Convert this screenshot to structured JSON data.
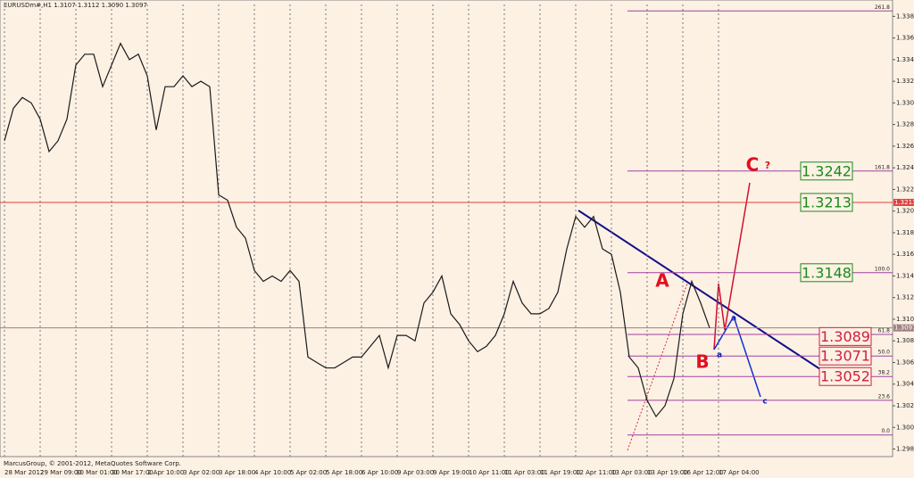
{
  "chart_data": {
    "type": "line",
    "title": "EURUSDm#,H1  1.3107 1.3112 1.3090 1.3097",
    "footer": "MarcusGroup, © 2001-2012, MetaQuotes Software Corp.",
    "color": "#1a1a1a",
    "grid": true,
    "ylim": [
      1.2978,
      1.3396
    ],
    "yticks": [
      1.2985,
      1.3005,
      1.3025,
      1.3045,
      1.3065,
      1.3085,
      1.3105,
      1.3125,
      1.3145,
      1.3165,
      1.3185,
      1.3205,
      1.3225,
      1.3245,
      1.3265,
      1.3285,
      1.3305,
      1.3325,
      1.3345,
      1.3365,
      1.3385
    ],
    "categories": [
      "28 Mar 2012",
      null,
      null,
      null,
      "29 Mar 09:00",
      null,
      null,
      null,
      "30 Mar 01:00",
      null,
      null,
      null,
      "30 Mar 17:00",
      null,
      null,
      null,
      "2 Apr 10:00",
      null,
      null,
      null,
      "3 Apr 02:00",
      null,
      null,
      null,
      "3 Apr 18:00",
      null,
      null,
      null,
      "4 Apr 10:00",
      null,
      null,
      null,
      "5 Apr 02:00",
      null,
      null,
      null,
      "5 Apr 18:00",
      null,
      null,
      null,
      "6 Apr 10:00",
      null,
      null,
      null,
      "9 Apr 03:00",
      null,
      null,
      null,
      "9 Apr 19:00",
      null,
      null,
      null,
      "10 Apr 11:00",
      null,
      null,
      null,
      "11 Apr 03:00",
      null,
      null,
      null,
      "11 Apr 19:00",
      null,
      null,
      null,
      "12 Apr 11:00",
      null,
      null,
      null,
      "13 Apr 03:00",
      null,
      null,
      null,
      "13 Apr 19:00",
      null,
      null,
      null,
      "16 Apr 12:00",
      null,
      null,
      null,
      "17 Apr 04:00",
      null,
      null,
      null,
      null,
      null,
      null,
      null,
      null,
      null,
      null,
      null,
      null,
      null,
      null,
      null,
      null,
      null,
      null,
      null
    ],
    "values": [
      1.327,
      1.33,
      1.331,
      1.3305,
      1.329,
      1.326,
      1.327,
      1.329,
      1.334,
      1.335,
      1.335,
      1.332,
      1.334,
      1.336,
      1.3345,
      1.335,
      1.333,
      1.328,
      1.332,
      1.332,
      1.333,
      1.332,
      1.3325,
      1.332,
      1.322,
      1.3215,
      1.319,
      1.318,
      1.315,
      1.314,
      1.3145,
      1.314,
      1.315,
      1.314,
      1.307,
      1.3065,
      1.306,
      1.306,
      1.3065,
      1.307,
      1.307,
      1.308,
      1.309,
      1.306,
      1.309,
      1.309,
      1.3085,
      1.312,
      1.313,
      1.3145,
      1.311,
      1.31,
      1.3085,
      1.3075,
      1.308,
      1.309,
      1.311,
      1.314,
      1.312,
      1.311,
      1.311,
      1.3115,
      1.313,
      1.317,
      1.32,
      1.319,
      1.32,
      1.317,
      1.3165,
      1.313,
      1.307,
      1.306,
      1.303,
      1.3015,
      1.3025,
      1.305,
      1.311,
      1.314,
      1.312,
      1.3097,
      null,
      null,
      null,
      null,
      null,
      null,
      null,
      null,
      null,
      null,
      null,
      null,
      null,
      null,
      null,
      null,
      null,
      null,
      null,
      null
    ],
    "hlines": [
      {
        "value": 1.3213,
        "color": "#e04040"
      },
      {
        "value": 1.3097,
        "color": "#a08080"
      }
    ],
    "fibo_levels": [
      {
        "label": "261.8",
        "price": 1.339
      },
      {
        "label": "161.8",
        "price": 1.3242
      },
      {
        "label": "100.0",
        "price": 1.3148
      },
      {
        "label": "61.8",
        "price": 1.3091
      },
      {
        "label": "50.0",
        "price": 1.3071
      },
      {
        "label": "38.2",
        "price": 1.3052
      },
      {
        "label": "23.6",
        "price": 1.303
      },
      {
        "label": "0.0",
        "price": 1.2998
      }
    ],
    "price_boxes": [
      {
        "value": 1.3242,
        "color": "#1a8a1a"
      },
      {
        "value": 1.3213,
        "color": "#1a8a1a"
      },
      {
        "value": 1.3148,
        "color": "#1a8a1a"
      },
      {
        "value": 1.3089,
        "color": "#d02040"
      },
      {
        "value": 1.3071,
        "color": "#d02040"
      },
      {
        "value": 1.3052,
        "color": "#d02040"
      }
    ],
    "wave_labels": [
      "A",
      "B",
      "C",
      "?",
      "a",
      "a",
      "c"
    ]
  }
}
